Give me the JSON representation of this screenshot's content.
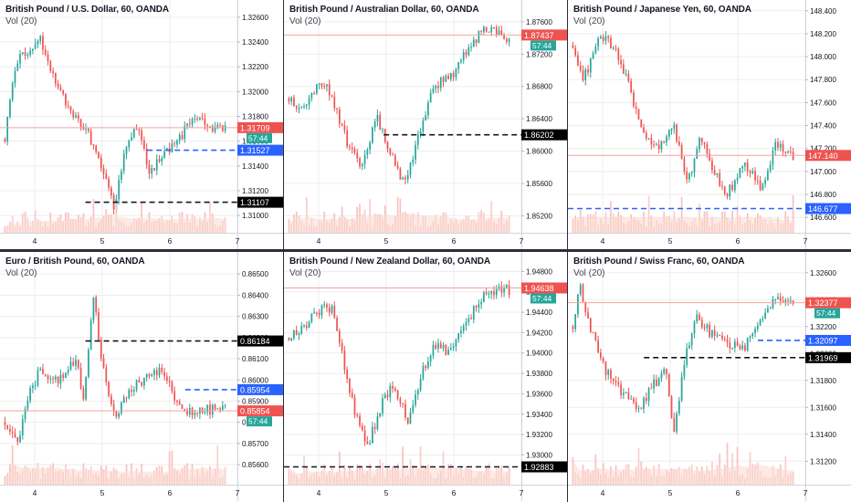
{
  "colors": {
    "up": "#26a69a",
    "down": "#ef5350",
    "vol_up": "#f7c6c3",
    "vol_down": "#f6b9b4",
    "vol_ma": "#fbd9cf",
    "black_line": "#131722",
    "blue_line": "#2962ff",
    "grid": "#ededed"
  },
  "panels": [
    {
      "title": "British Pound / U.S. Dollar, 60, OANDA",
      "vol_label": "Vol (20)",
      "y_ticks": [
        "1.32600",
        "1.32400",
        "1.32200",
        "1.32000",
        "1.31800",
        "1.31600",
        "1.31400",
        "1.31200",
        "1.31000"
      ],
      "y_range": [
        1.3092,
        1.3268
      ],
      "x_ticks": [
        "4",
        "5",
        "6",
        "7"
      ],
      "price": {
        "value": "1.31709",
        "level": 1.31709,
        "countdown": "57:44"
      },
      "levels": [
        {
          "value": "1.31527",
          "level": 1.31527,
          "style": "blue",
          "from": 0.62
        },
        {
          "value": "1.31107",
          "level": 1.31107,
          "style": "black",
          "from": 0.36
        }
      ],
      "chart_data": {
        "type": "candlestick",
        "seed": 11,
        "n": 88,
        "path": [
          [
            0,
            1.3162
          ],
          [
            0.05,
            1.3225
          ],
          [
            0.1,
            1.3232
          ],
          [
            0.16,
            1.3245
          ],
          [
            0.22,
            1.321
          ],
          [
            0.3,
            1.3185
          ],
          [
            0.38,
            1.3165
          ],
          [
            0.44,
            1.314
          ],
          [
            0.5,
            1.3105
          ],
          [
            0.54,
            1.315
          ],
          [
            0.6,
            1.317
          ],
          [
            0.66,
            1.3135
          ],
          [
            0.72,
            1.315
          ],
          [
            0.78,
            1.316
          ],
          [
            0.86,
            1.3178
          ],
          [
            0.93,
            1.3172
          ]
        ]
      }
    },
    {
      "title": "British Pound / Australian Dollar, 60, OANDA",
      "vol_label": "Vol (20)",
      "y_ticks": [
        "1.87600",
        "1.87200",
        "1.86800",
        "1.86400",
        "1.86000",
        "1.85600",
        "1.85200"
      ],
      "y_range": [
        1.8508,
        1.8778
      ],
      "x_ticks": [
        "4",
        "5",
        "6",
        "7"
      ],
      "price": {
        "value": "1.87437",
        "level": 1.87437,
        "countdown": "57:44"
      },
      "levels": [
        {
          "value": "1.86202",
          "level": 1.86202,
          "style": "black",
          "from": 0.42
        }
      ],
      "chart_data": {
        "type": "candlestick",
        "seed": 23,
        "n": 88,
        "path": [
          [
            0,
            1.8665
          ],
          [
            0.06,
            1.865
          ],
          [
            0.14,
            1.869
          ],
          [
            0.2,
            1.8665
          ],
          [
            0.26,
            1.8615
          ],
          [
            0.32,
            1.858
          ],
          [
            0.4,
            1.864
          ],
          [
            0.46,
            1.86
          ],
          [
            0.52,
            1.856
          ],
          [
            0.58,
            1.861
          ],
          [
            0.64,
            1.867
          ],
          [
            0.7,
            1.869
          ],
          [
            0.76,
            1.87
          ],
          [
            0.82,
            1.873
          ],
          [
            0.9,
            1.8755
          ],
          [
            0.97,
            1.8742
          ]
        ]
      }
    },
    {
      "title": "British Pound / Japanese Yen, 60, OANDA",
      "vol_label": "Vol (20)",
      "y_ticks": [
        "148.400",
        "148.200",
        "148.000",
        "147.800",
        "147.600",
        "147.400",
        "147.200",
        "147.000",
        "146.800",
        "146.600"
      ],
      "y_range": [
        146.53,
        148.43
      ],
      "x_ticks": [
        "4",
        "5",
        "6",
        "7"
      ],
      "price": {
        "value": "147.140",
        "level": 147.14,
        "countdown": ""
      },
      "levels": [
        {
          "value": "146.677",
          "level": 146.677,
          "style": "blue",
          "from": 0.0
        }
      ],
      "chart_data": {
        "type": "candlestick",
        "seed": 37,
        "n": 88,
        "path": [
          [
            0,
            148.1
          ],
          [
            0.05,
            147.8
          ],
          [
            0.12,
            148.2
          ],
          [
            0.2,
            148.05
          ],
          [
            0.26,
            147.7
          ],
          [
            0.32,
            147.3
          ],
          [
            0.38,
            147.2
          ],
          [
            0.46,
            147.4
          ],
          [
            0.52,
            146.9
          ],
          [
            0.58,
            147.3
          ],
          [
            0.64,
            147.0
          ],
          [
            0.7,
            146.8
          ],
          [
            0.78,
            147.05
          ],
          [
            0.86,
            146.85
          ],
          [
            0.92,
            147.25
          ],
          [
            0.97,
            147.14
          ]
        ]
      }
    },
    {
      "title": "Euro / British Pound, 60, OANDA",
      "vol_label": "Vol (20)",
      "y_ticks": [
        "0.86500",
        "0.86400",
        "0.86300",
        "0.86200",
        "0.86100",
        "0.86000",
        "0.85900",
        "0.85800",
        "0.85700",
        "0.85600"
      ],
      "y_range": [
        0.8554,
        0.8657
      ],
      "x_ticks": [
        "4",
        "5",
        "6",
        "7"
      ],
      "price": {
        "value": "0.85854",
        "level": 0.85854,
        "countdown": "57:44"
      },
      "levels": [
        {
          "value": "0.86184",
          "level": 0.86184,
          "style": "black",
          "from": 0.36
        },
        {
          "value": "0.85954",
          "level": 0.85954,
          "style": "blue",
          "from": 0.78
        }
      ],
      "chart_data": {
        "type": "candlestick",
        "seed": 41,
        "n": 88,
        "path": [
          [
            0,
            0.858
          ],
          [
            0.06,
            0.857
          ],
          [
            0.1,
            0.859
          ],
          [
            0.16,
            0.8605
          ],
          [
            0.24,
            0.86
          ],
          [
            0.32,
            0.861
          ],
          [
            0.36,
            0.859
          ],
          [
            0.4,
            0.864
          ],
          [
            0.44,
            0.861
          ],
          [
            0.5,
            0.858
          ],
          [
            0.56,
            0.8595
          ],
          [
            0.64,
            0.86
          ],
          [
            0.72,
            0.8605
          ],
          [
            0.78,
            0.859
          ],
          [
            0.84,
            0.8585
          ],
          [
            0.9,
            0.8586
          ]
        ]
      }
    },
    {
      "title": "British Pound / New Zealand Dollar, 60, OANDA",
      "vol_label": "Vol (20)",
      "y_ticks": [
        "1.94800",
        "1.94600",
        "1.94400",
        "1.94200",
        "1.94000",
        "1.93800",
        "1.93600",
        "1.93400",
        "1.93200",
        "1.93000"
      ],
      "y_range": [
        1.9278,
        1.9492
      ],
      "x_ticks": [
        "4",
        "5",
        "6",
        "7"
      ],
      "price": {
        "value": "1.94638",
        "level": 1.94638,
        "countdown": "57:44"
      },
      "levels": [
        {
          "value": "1.92883",
          "level": 1.92883,
          "style": "black",
          "from": 0.0
        }
      ],
      "chart_data": {
        "type": "candlestick",
        "seed": 53,
        "n": 88,
        "path": [
          [
            0,
            1.9415
          ],
          [
            0.06,
            1.9425
          ],
          [
            0.12,
            1.944
          ],
          [
            0.2,
            1.9445
          ],
          [
            0.24,
            1.94
          ],
          [
            0.3,
            1.934
          ],
          [
            0.36,
            1.931
          ],
          [
            0.42,
            1.935
          ],
          [
            0.48,
            1.937
          ],
          [
            0.54,
            1.933
          ],
          [
            0.6,
            1.938
          ],
          [
            0.66,
            1.941
          ],
          [
            0.72,
            1.94
          ],
          [
            0.78,
            1.942
          ],
          [
            0.88,
            1.9455
          ],
          [
            0.96,
            1.9462
          ]
        ]
      }
    },
    {
      "title": "British Pound / Swiss Franc, 60, OANDA",
      "vol_label": "Vol (20)",
      "y_ticks": [
        "1.32600",
        "1.32400",
        "1.32200",
        "1.32000",
        "1.31800",
        "1.31600",
        "1.31400",
        "1.31200"
      ],
      "y_range": [
        1.3108,
        1.327
      ],
      "x_ticks": [
        "4",
        "5",
        "6",
        "7"
      ],
      "price": {
        "value": "1.32377",
        "level": 1.32377,
        "countdown": "57:44"
      },
      "levels": [
        {
          "value": "1.32097",
          "level": 1.32097,
          "style": "blue",
          "from": 0.8
        },
        {
          "value": "1.31969",
          "level": 1.31969,
          "style": "black",
          "from": 0.32
        }
      ],
      "chart_data": {
        "type": "candlestick",
        "seed": 67,
        "n": 88,
        "path": [
          [
            0,
            1.322
          ],
          [
            0.03,
            1.325
          ],
          [
            0.08,
            1.322
          ],
          [
            0.14,
            1.319
          ],
          [
            0.22,
            1.317
          ],
          [
            0.3,
            1.316
          ],
          [
            0.36,
            1.3175
          ],
          [
            0.42,
            1.319
          ],
          [
            0.46,
            1.314
          ],
          [
            0.5,
            1.319
          ],
          [
            0.56,
            1.323
          ],
          [
            0.62,
            1.3215
          ],
          [
            0.7,
            1.3208
          ],
          [
            0.78,
            1.3205
          ],
          [
            0.84,
            1.3225
          ],
          [
            0.92,
            1.324
          ],
          [
            0.97,
            1.3238
          ]
        ]
      }
    }
  ]
}
